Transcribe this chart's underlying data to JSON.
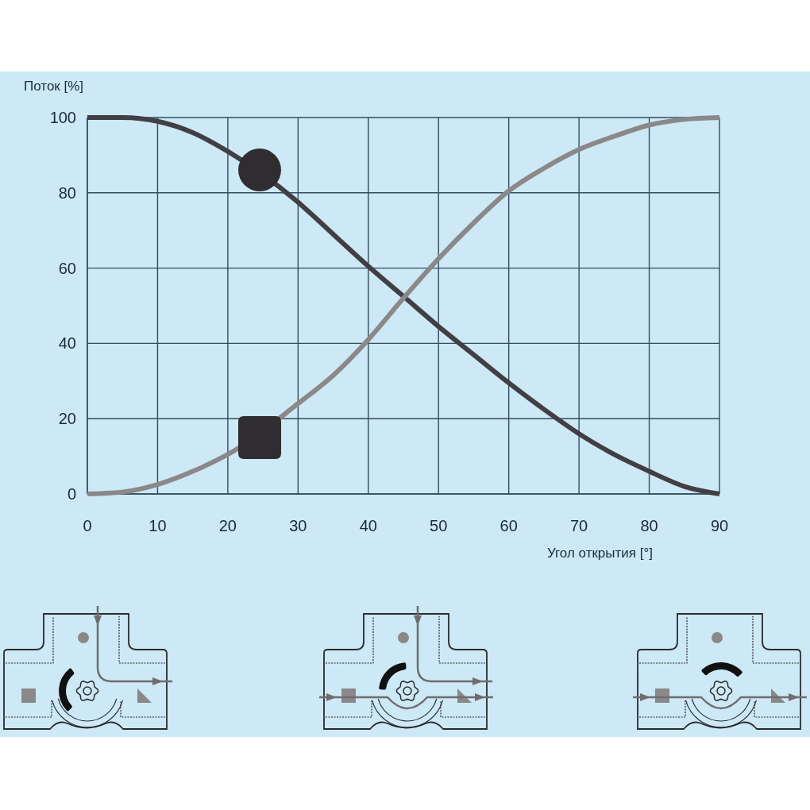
{
  "chart_data": {
    "type": "line",
    "xlabel": "Угол открытия [°]",
    "ylabel": "Поток [%]",
    "x": [
      0,
      5,
      10,
      15,
      20,
      30,
      35,
      40,
      45,
      50,
      55,
      60,
      65,
      70,
      75,
      80,
      85,
      90
    ],
    "series": [
      {
        "color": "#423f44",
        "values": [
          100,
          100,
          99,
          96,
          91,
          77.5,
          69,
          60.5,
          52.5,
          44.5,
          37,
          29.5,
          22.5,
          16,
          10.5,
          6,
          2,
          0
        ]
      },
      {
        "color": "#8b8889",
        "values": [
          0,
          0.5,
          2.5,
          6,
          10.5,
          24,
          31.5,
          41,
          52,
          62.5,
          72,
          80.5,
          86.5,
          91.5,
          95,
          98,
          99.5,
          100
        ]
      }
    ],
    "xlim": [
      0,
      90
    ],
    "ylim": [
      0,
      100
    ],
    "xticks": [
      0,
      10,
      20,
      30,
      40,
      50,
      60,
      70,
      80,
      90
    ],
    "yticks": [
      0,
      20,
      40,
      60,
      80,
      100
    ],
    "grid": true
  }
}
